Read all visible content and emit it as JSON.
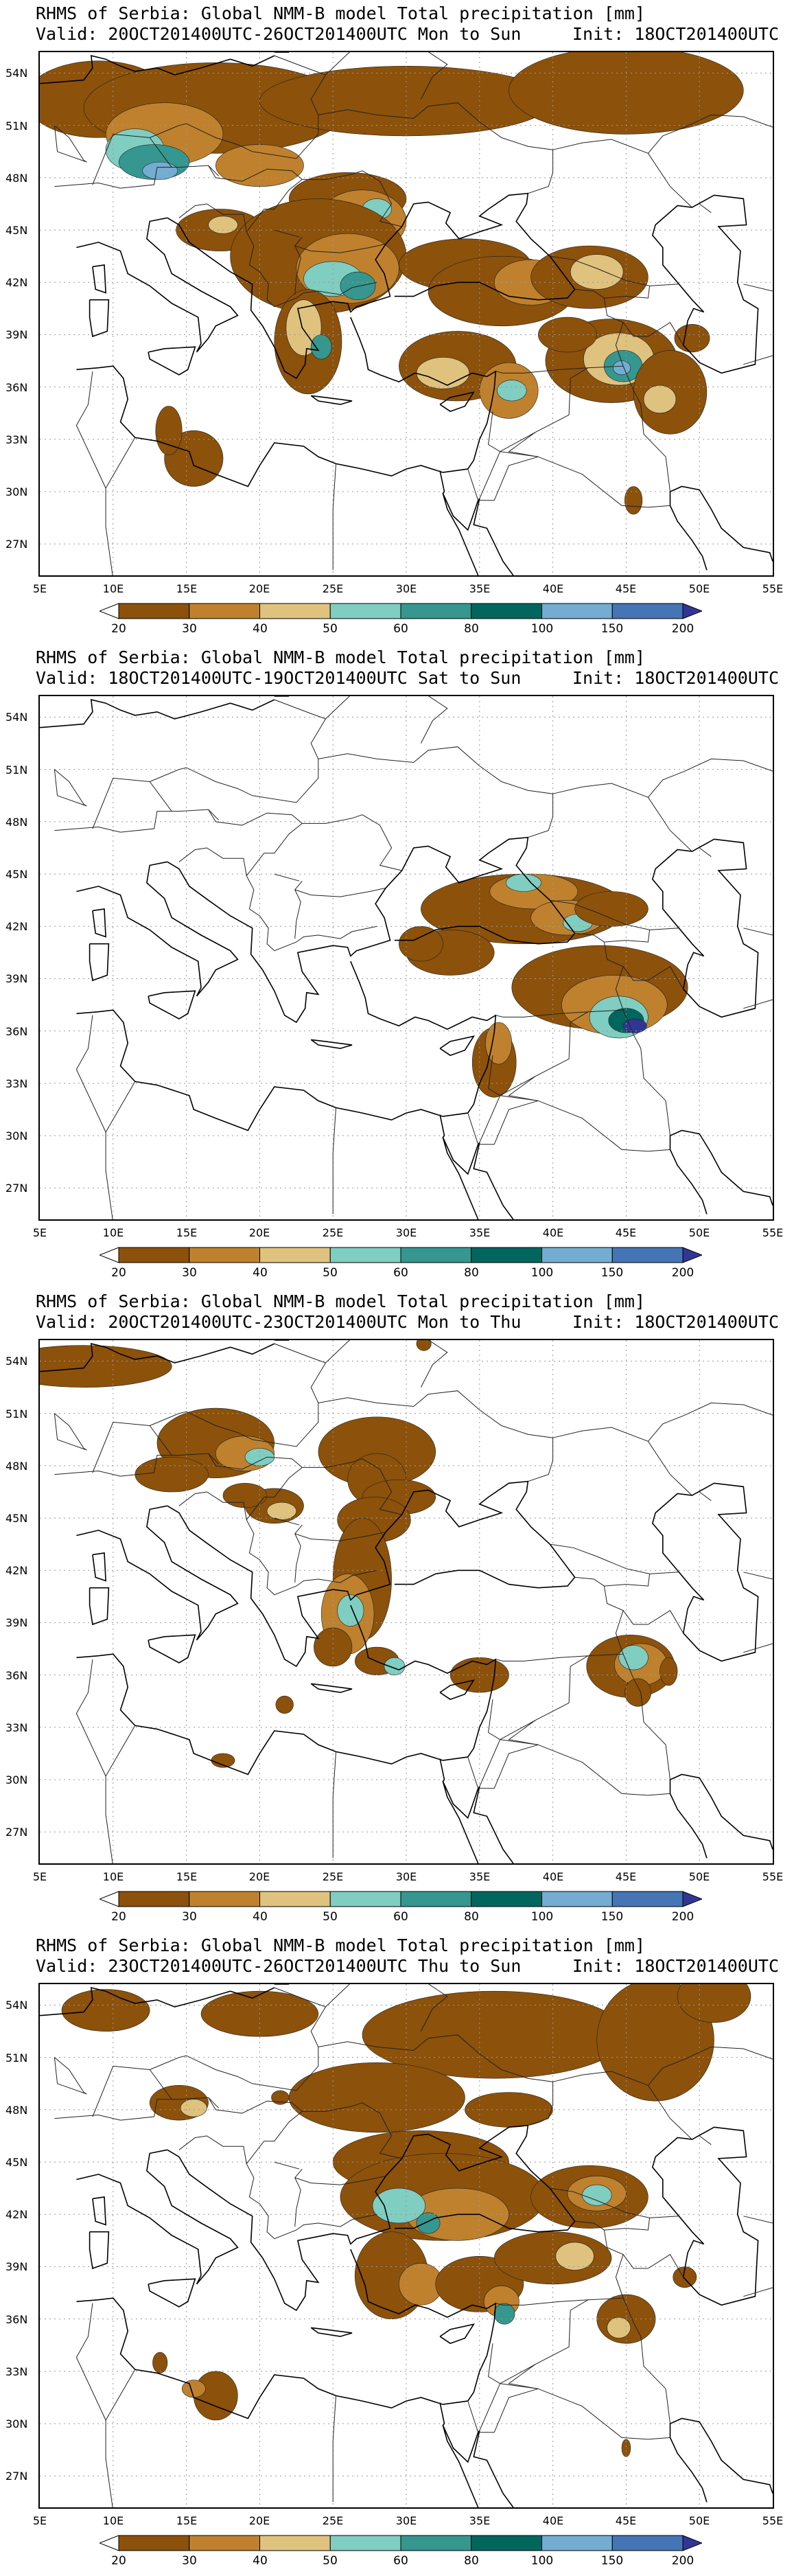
{
  "panels": [
    {
      "title": "RHMS of Serbia: Global NMM-B model Total precipitation [mm]",
      "valid": "Valid: 20OCT201400UTC-26OCT201400UTC Mon to Sun",
      "init": "Init: 18OCT201400UTC"
    },
    {
      "title": "RHMS of Serbia: Global NMM-B model Total precipitation [mm]",
      "valid": "Valid: 18OCT201400UTC-19OCT201400UTC Sat to Sun",
      "init": "Init: 18OCT201400UTC"
    },
    {
      "title": "RHMS of Serbia: Global NMM-B model Total precipitation [mm]",
      "valid": "Valid: 20OCT201400UTC-23OCT201400UTC Mon to Thu",
      "init": "Init: 18OCT201400UTC"
    },
    {
      "title": "RHMS of Serbia: Global NMM-B model Total precipitation [mm]",
      "valid": "Valid: 23OCT201400UTC-26OCT201400UTC Thu to Sun",
      "init": "Init: 18OCT201400UTC"
    }
  ],
  "lat_labels": [
    "54N",
    "51N",
    "48N",
    "45N",
    "42N",
    "39N",
    "36N",
    "33N",
    "30N",
    "27N"
  ],
  "lon_labels": [
    "5E",
    "10E",
    "15E",
    "20E",
    "25E",
    "30E",
    "35E",
    "40E",
    "45E",
    "50E",
    "55E"
  ],
  "colorbar": {
    "labels": [
      "20",
      "30",
      "40",
      "50",
      "60",
      "80",
      "100",
      "150",
      "200"
    ],
    "colors": [
      "#ffffff",
      "#8c510a",
      "#bf812d",
      "#dfc27d",
      "#80cdc1",
      "#35978f",
      "#01665e",
      "#74add1",
      "#4575b4",
      "#313695"
    ]
  }
}
